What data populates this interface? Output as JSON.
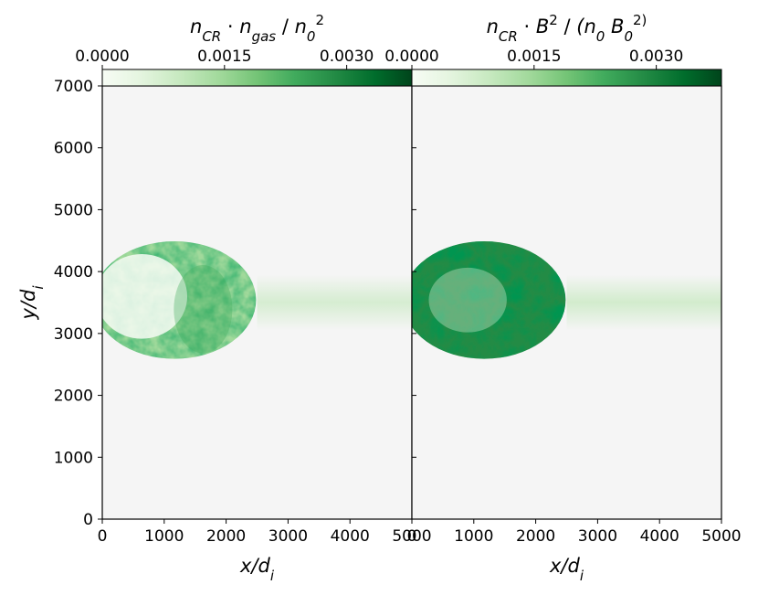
{
  "chart_data": [
    {
      "type": "heatmap",
      "panel": "left",
      "colorbar": {
        "label": "n_CR · n_gas / n_0^2",
        "range": [
          0.0,
          0.0038
        ],
        "ticks": [
          "0.0000",
          "0.0015",
          "0.0030"
        ],
        "colormap": "Greens"
      },
      "xlabel": "x/d_i",
      "ylabel": "y/d_i",
      "xlim": [
        0,
        5000
      ],
      "ylim": [
        0,
        7000
      ],
      "xticks": [
        "0",
        "1000",
        "2000",
        "3000",
        "4000",
        "5000"
      ],
      "yticks": [
        "0",
        "1000",
        "2000",
        "3000",
        "4000",
        "5000",
        "6000",
        "7000"
      ],
      "features": {
        "bubble_center": [
          1050,
          3540
        ],
        "bubble_radius_x": 1050,
        "bubble_radius_y": 950,
        "jet_y_range": [
          3050,
          3950
        ],
        "jet_x_extent": [
          2500,
          5000
        ]
      }
    },
    {
      "type": "heatmap",
      "panel": "right",
      "colorbar": {
        "label": "n_CR · B^2 / (n_0 B_0^2)",
        "range": [
          0.0,
          0.0038
        ],
        "ticks": [
          "0.0000",
          "0.0015",
          "0.0030"
        ],
        "colormap": "Greens"
      },
      "xlabel": "x/d_i",
      "xlim": [
        0,
        5000
      ],
      "ylim": [
        0,
        7000
      ],
      "xticks": [
        "0",
        "1000",
        "2000",
        "3000",
        "4000",
        "5000"
      ],
      "features": {
        "bubble_center": [
          1050,
          3540
        ],
        "bubble_radius_x": 1050,
        "bubble_radius_y": 950,
        "jet_y_range": [
          3050,
          3950
        ],
        "jet_x_extent": [
          2500,
          5000
        ]
      }
    }
  ],
  "colors": {
    "background": "#f5f5f5",
    "greens_light": "#f7fcf5",
    "greens_mid": "#41ab5d",
    "greens_dark": "#00441b"
  }
}
